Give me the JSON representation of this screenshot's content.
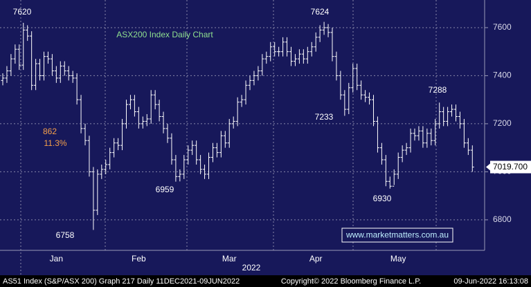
{
  "chart_data": {
    "type": "ohlc",
    "title": "ASX200 Index Daily Chart",
    "x_label": "2022",
    "source": "www.marketmatters.com.au",
    "last_price_label": "7019.700",
    "annotations": [
      "7620",
      "7624",
      "7288",
      "7233",
      "6959",
      "6930",
      "6758",
      "862",
      "11.3%"
    ],
    "color": "#ffffff",
    "grid": true,
    "ylim": [
      6673,
      7715
    ],
    "yticks": [
      6800,
      7000,
      7200,
      7400,
      7600
    ],
    "categories": [
      null,
      null,
      null,
      null,
      null,
      null,
      null,
      null,
      null,
      null,
      null,
      null,
      null,
      "Jan",
      null,
      null,
      null,
      null,
      null,
      null,
      null,
      null,
      null,
      null,
      null,
      null,
      null,
      null,
      null,
      null,
      null,
      null,
      null,
      "Feb",
      null,
      null,
      null,
      null,
      null,
      null,
      null,
      null,
      null,
      null,
      null,
      null,
      null,
      null,
      null,
      null,
      null,
      null,
      null,
      null,
      null,
      "Mar",
      null,
      null,
      null,
      null,
      null,
      null,
      null,
      null,
      null,
      null,
      null,
      null,
      null,
      null,
      null,
      null,
      null,
      null,
      null,
      null,
      "Apr",
      null,
      null,
      null,
      null,
      null,
      null,
      null,
      null,
      null,
      null,
      null,
      null,
      null,
      null,
      null,
      null,
      null,
      null,
      null,
      "May",
      null,
      null,
      null,
      null,
      null,
      null,
      null,
      null,
      null,
      null,
      null,
      null,
      null,
      null,
      null,
      null,
      null,
      null
    ],
    "open": [
      7380,
      7390,
      7420,
      7470,
      7510,
      7444,
      7590,
      7565,
      7360,
      7450,
      7400,
      7480,
      7470,
      7420,
      7390,
      7440,
      7420,
      7400,
      7390,
      7300,
      7180,
      7130,
      7000,
      6840,
      6990,
      7010,
      7030,
      7080,
      7120,
      7110,
      7200,
      7280,
      7300,
      7250,
      7200,
      7210,
      7220,
      7320,
      7280,
      7230,
      7180,
      7140,
      7050,
      6980,
      6990,
      7050,
      7090,
      7110,
      7050,
      7010,
      6990,
      7060,
      7100,
      7080,
      7150,
      7120,
      7200,
      7210,
      7290,
      7300,
      7360,
      7380,
      7400,
      7420,
      7470,
      7480,
      7520,
      7500,
      7500,
      7540,
      7500,
      7460,
      7470,
      7490,
      7470,
      7500,
      7520,
      7560,
      7590,
      7600,
      7580,
      7480,
      7400,
      7320,
      7260,
      7350,
      7430,
      7360,
      7320,
      7310,
      7300,
      7210,
      7100,
      7050,
      6960,
      6940,
      6990,
      7060,
      7090,
      7100,
      7160,
      7150,
      7170,
      7120,
      7160,
      7130,
      7200,
      7250,
      7210,
      7250,
      7260,
      7230,
      7200,
      7120,
      7090
    ],
    "high": [
      7410,
      7440,
      7490,
      7530,
      7530,
      7620,
      7610,
      7585,
      7470,
      7470,
      7500,
      7500,
      7490,
      7440,
      7460,
      7460,
      7440,
      7420,
      7410,
      7320,
      7200,
      7150,
      7020,
      7010,
      7030,
      7050,
      7100,
      7140,
      7140,
      7220,
      7300,
      7320,
      7320,
      7270,
      7230,
      7240,
      7340,
      7340,
      7300,
      7250,
      7200,
      7160,
      7070,
      7010,
      7070,
      7110,
      7130,
      7130,
      7070,
      7030,
      7080,
      7120,
      7120,
      7170,
      7170,
      7220,
      7230,
      7310,
      7320,
      7380,
      7400,
      7420,
      7440,
      7490,
      7500,
      7540,
      7540,
      7520,
      7560,
      7560,
      7520,
      7490,
      7510,
      7510,
      7520,
      7540,
      7580,
      7610,
      7624,
      7615,
      7600,
      7500,
      7420,
      7340,
      7370,
      7450,
      7450,
      7380,
      7340,
      7330,
      7320,
      7230,
      7120,
      7070,
      6980,
      7010,
      7080,
      7110,
      7120,
      7180,
      7180,
      7190,
      7190,
      7180,
      7180,
      7220,
      7288,
      7270,
      7270,
      7280,
      7280,
      7250,
      7220,
      7140,
      7110
    ],
    "low": [
      7360,
      7370,
      7400,
      7450,
      7424,
      7424,
      7545,
      7340,
      7340,
      7380,
      7380,
      7450,
      7400,
      7370,
      7370,
      7400,
      7380,
      7370,
      7280,
      7160,
      7110,
      6980,
      6758,
      6820,
      6970,
      6990,
      7010,
      7060,
      7090,
      7090,
      7180,
      7260,
      7230,
      7180,
      7180,
      7190,
      7200,
      7260,
      7210,
      7160,
      7120,
      7030,
      6959,
      6960,
      6970,
      7030,
      7070,
      7030,
      6990,
      6970,
      6970,
      7040,
      7060,
      7060,
      7100,
      7100,
      7180,
      7190,
      7270,
      7280,
      7340,
      7360,
      7380,
      7400,
      7450,
      7460,
      7480,
      7480,
      7480,
      7480,
      7440,
      7440,
      7450,
      7450,
      7450,
      7480,
      7500,
      7540,
      7570,
      7560,
      7460,
      7380,
      7300,
      7233,
      7240,
      7330,
      7340,
      7300,
      7290,
      7280,
      7190,
      7080,
      7030,
      6940,
      6930,
      6945,
      6970,
      7040,
      7070,
      7080,
      7130,
      7130,
      7100,
      7100,
      7110,
      7110,
      7180,
      7190,
      7190,
      7230,
      7210,
      7180,
      7100,
      7070,
      7000
    ],
    "close": [
      7390,
      7420,
      7470,
      7510,
      7444,
      7590,
      7565,
      7360,
      7450,
      7400,
      7480,
      7470,
      7420,
      7390,
      7440,
      7420,
      7400,
      7390,
      7300,
      7180,
      7130,
      7000,
      6840,
      6990,
      7010,
      7030,
      7080,
      7120,
      7110,
      7200,
      7280,
      7300,
      7250,
      7200,
      7210,
      7220,
      7320,
      7280,
      7230,
      7180,
      7140,
      7050,
      6980,
      6990,
      7050,
      7090,
      7110,
      7050,
      7010,
      6990,
      7060,
      7100,
      7080,
      7150,
      7120,
      7200,
      7210,
      7290,
      7300,
      7360,
      7380,
      7400,
      7420,
      7470,
      7480,
      7520,
      7500,
      7500,
      7540,
      7500,
      7460,
      7470,
      7490,
      7470,
      7500,
      7520,
      7560,
      7590,
      7600,
      7580,
      7480,
      7400,
      7320,
      7260,
      7350,
      7430,
      7360,
      7320,
      7310,
      7300,
      7210,
      7100,
      7050,
      6960,
      6940,
      6990,
      7060,
      7090,
      7100,
      7160,
      7150,
      7170,
      7120,
      7160,
      7130,
      7200,
      7250,
      7210,
      7250,
      7260,
      7230,
      7200,
      7120,
      7090,
      7019.7
    ]
  },
  "footer": {
    "left": "AS51 Index (S&P/ASX 200) Graph 217  Daily 11DEC2021-09JUN2022",
    "center": "Copyright© 2022 Bloomberg Finance L.P.",
    "right": "09-Jun-2022 16:13:08"
  }
}
